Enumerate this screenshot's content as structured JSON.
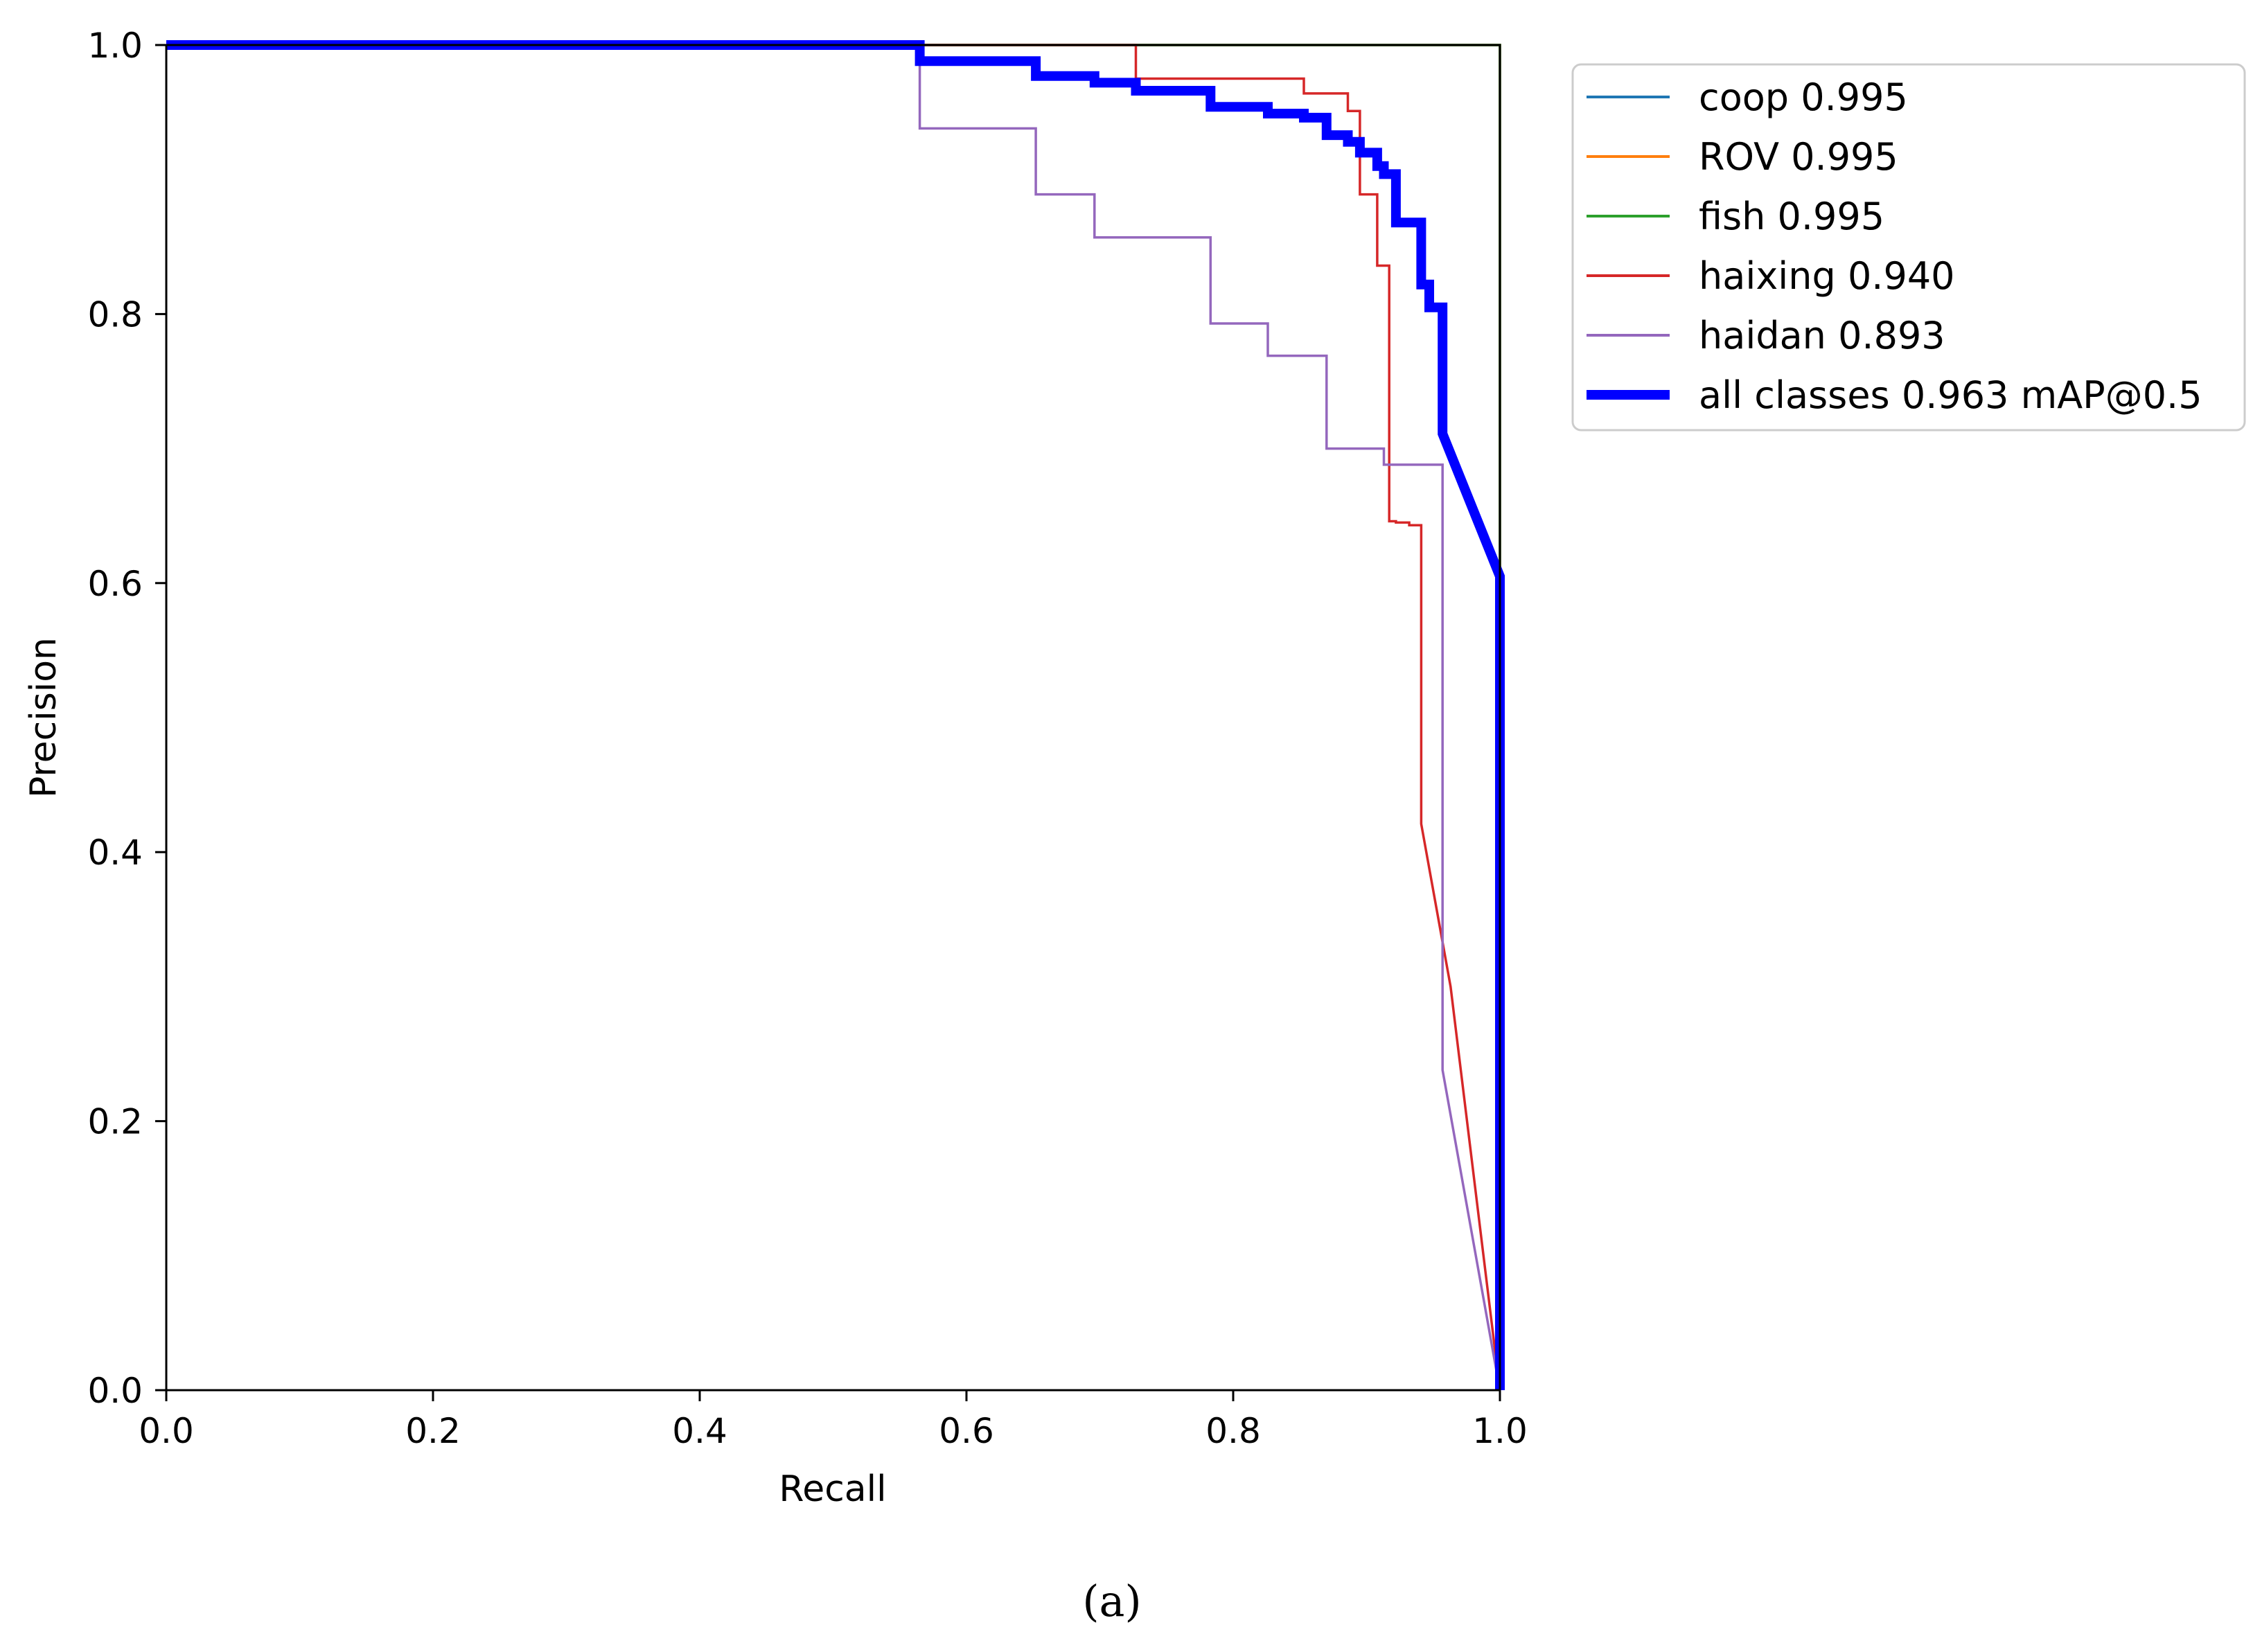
{
  "chart_data": {
    "type": "line",
    "title": "",
    "xlabel": "Recall",
    "ylabel": "Precision",
    "xlim": [
      0.0,
      1.0
    ],
    "ylim": [
      0.0,
      1.0
    ],
    "xticks": [
      "0.0",
      "0.2",
      "0.4",
      "0.6",
      "0.8",
      "1.0"
    ],
    "yticks": [
      "0.0",
      "0.2",
      "0.4",
      "0.6",
      "0.8",
      "1.0"
    ],
    "grid": false,
    "legend_position": "outside-top-right",
    "caption": "(a)",
    "series": [
      {
        "name": "coop",
        "label": "coop 0.995",
        "color": "#1f77b4",
        "emphasis": "normal",
        "x": [
          0.0,
          1.0,
          1.0
        ],
        "y": [
          1.0,
          1.0,
          0.0
        ]
      },
      {
        "name": "ROV",
        "label": "ROV 0.995",
        "color": "#ff7f0e",
        "emphasis": "normal",
        "x": [
          0.0,
          1.0,
          1.0
        ],
        "y": [
          1.0,
          1.0,
          0.0
        ]
      },
      {
        "name": "fish",
        "label": "fish 0.995",
        "color": "#2ca02c",
        "emphasis": "normal",
        "x": [
          0.0,
          1.0,
          1.0
        ],
        "y": [
          1.0,
          1.0,
          0.0
        ]
      },
      {
        "name": "haixing",
        "label": "haixing 0.940",
        "color": "#d62728",
        "emphasis": "normal",
        "x": [
          0.0,
          0.727,
          0.727,
          0.853,
          0.853,
          0.886,
          0.886,
          0.895,
          0.895,
          0.908,
          0.908,
          0.917,
          0.917,
          0.922,
          0.922,
          0.932,
          0.932,
          0.941,
          0.941,
          0.963,
          1.0
        ],
        "y": [
          1.0,
          1.0,
          0.975,
          0.975,
          0.964,
          0.964,
          0.951,
          0.951,
          0.889,
          0.889,
          0.836,
          0.836,
          0.646,
          0.646,
          0.645,
          0.645,
          0.643,
          0.643,
          0.421,
          0.3,
          0.0
        ]
      },
      {
        "name": "haidan",
        "label": "haidan 0.893",
        "color": "#9467bd",
        "emphasis": "normal",
        "x": [
          0.0,
          0.565,
          0.565,
          0.652,
          0.652,
          0.696,
          0.696,
          0.783,
          0.783,
          0.826,
          0.826,
          0.87,
          0.87,
          0.913,
          0.913,
          0.957,
          0.957,
          1.0
        ],
        "y": [
          1.0,
          1.0,
          0.938,
          0.938,
          0.889,
          0.889,
          0.857,
          0.857,
          0.793,
          0.793,
          0.769,
          0.769,
          0.7,
          0.7,
          0.688,
          0.688,
          0.238,
          0.0
        ]
      },
      {
        "name": "all classes",
        "label": "all classes 0.963 mAP@0.5",
        "color": "#0000ff",
        "emphasis": "bold",
        "x": [
          0.0,
          0.565,
          0.565,
          0.652,
          0.652,
          0.696,
          0.696,
          0.727,
          0.727,
          0.783,
          0.783,
          0.826,
          0.826,
          0.853,
          0.853,
          0.87,
          0.87,
          0.886,
          0.886,
          0.895,
          0.895,
          0.908,
          0.908,
          0.913,
          0.913,
          0.922,
          0.922,
          0.941,
          0.941,
          0.947,
          0.947,
          0.957,
          0.957,
          1.0,
          1.0
        ],
        "y": [
          1.0,
          1.0,
          0.988,
          0.988,
          0.977,
          0.977,
          0.972,
          0.972,
          0.966,
          0.966,
          0.954,
          0.954,
          0.949,
          0.949,
          0.946,
          0.946,
          0.933,
          0.933,
          0.928,
          0.928,
          0.92,
          0.92,
          0.91,
          0.91,
          0.904,
          0.904,
          0.868,
          0.868,
          0.822,
          0.822,
          0.805,
          0.805,
          0.711,
          0.605,
          0.0
        ]
      }
    ]
  }
}
